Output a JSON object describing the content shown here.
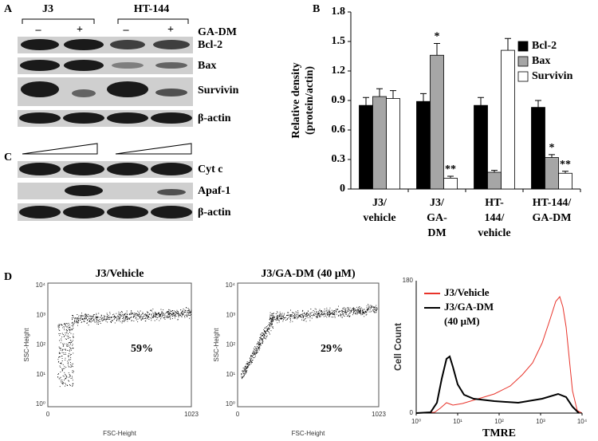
{
  "panel_a": {
    "label": "A",
    "cell_lines": [
      "J3",
      "HT-144"
    ],
    "treatment_marks": [
      "–",
      "+",
      "–",
      "+"
    ],
    "treatment": "GA-DM",
    "proteins": [
      "Bcl-2",
      "Bax",
      "Survivin",
      "β-actin"
    ]
  },
  "panel_c": {
    "label": "C",
    "proteins": [
      "Cyt c",
      "Apaf-1",
      "β-actin"
    ]
  },
  "chart_data": {
    "type": "bar",
    "panel_label": "B",
    "ylabel": [
      "Relative density",
      "(protein/actin)"
    ],
    "categories": [
      [
        "J3/",
        "vehicle"
      ],
      [
        "J3/",
        "GA-",
        "DM"
      ],
      [
        "HT-",
        "144/",
        "vehicle"
      ],
      [
        "HT-144/",
        "GA-DM"
      ]
    ],
    "series": [
      {
        "name": "Bcl-2",
        "color": "#000000",
        "values": [
          0.85,
          0.89,
          0.85,
          0.83
        ],
        "errors": [
          0.08,
          0.08,
          0.08,
          0.07
        ],
        "significance": [
          null,
          null,
          null,
          null
        ]
      },
      {
        "name": "Bax",
        "color": "#a6a6a6",
        "values": [
          0.94,
          1.36,
          0.17,
          0.32
        ],
        "errors": [
          0.08,
          0.12,
          0.02,
          0.03
        ],
        "significance": [
          null,
          "*",
          null,
          "*"
        ]
      },
      {
        "name": "Survivin",
        "color": "#ffffff",
        "values": [
          0.92,
          0.11,
          1.41,
          0.16
        ],
        "errors": [
          0.08,
          0.02,
          0.12,
          0.02
        ],
        "significance": [
          null,
          "**",
          null,
          "**"
        ]
      }
    ],
    "ylim": [
      0,
      1.8
    ],
    "yticks": [
      0,
      0.3,
      0.6,
      0.9,
      1.2,
      1.5,
      1.8
    ],
    "legend": "upper right"
  },
  "panel_d": {
    "label": "D",
    "scatter_plots": [
      {
        "title": "J3/Vehicle",
        "gate_percent": "59%",
        "ylabel": "SSC-Height",
        "xlabel": "FSC-Height",
        "yticks": [
          "10⁴",
          "10³",
          "10²",
          "10¹",
          "10⁰"
        ],
        "xticks": [
          "0",
          "1023"
        ]
      },
      {
        "title": "J3/GA-DM (40 μM)",
        "gate_percent": "29%",
        "ylabel": "SSC-Height",
        "xlabel": "FSC-Height",
        "yticks": [
          "10⁴",
          "10³",
          "10²",
          "10¹",
          "10⁰"
        ],
        "xticks": [
          "0",
          "1023"
        ]
      }
    ],
    "histogram": {
      "ylabel": "Cell Count",
      "xlabel": "TMRE",
      "yticks": [
        "180",
        "0"
      ],
      "xticks": [
        "10⁰",
        "10¹",
        "10²",
        "10³",
        "10⁴"
      ],
      "legend": [
        {
          "name": [
            "J3/Vehicle"
          ],
          "color": "#e8332a"
        },
        {
          "name": [
            "J3/GA-DM",
            "(40 μM)"
          ],
          "color": "#000000"
        }
      ]
    }
  }
}
